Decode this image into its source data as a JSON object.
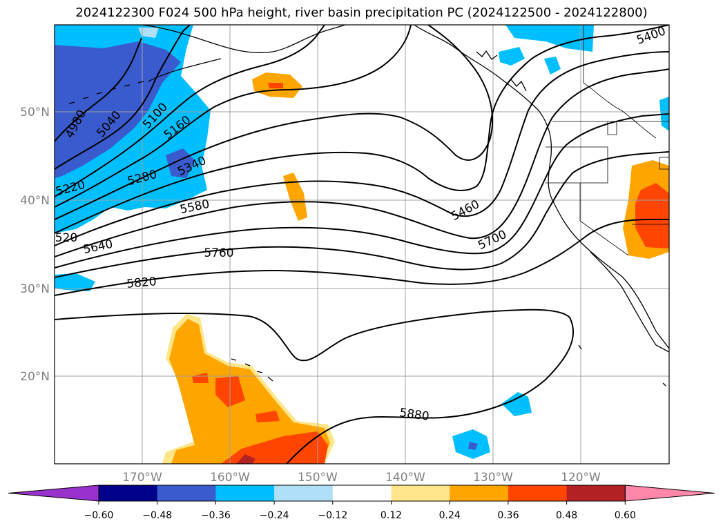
{
  "title": "2024122300 F024 500 hPa height, river basin precipitation PC (2024122500 - 2024122800)",
  "lat_labels": [
    "50°N",
    "40°N",
    "30°N",
    "20°N"
  ],
  "lon_labels": [
    "170°W",
    "160°W",
    "150°W",
    "140°W",
    "130°W",
    "120°W"
  ],
  "contour_labels": [
    "4980",
    "5040",
    "5100",
    "5160",
    "5220",
    "5280",
    "5340",
    "5400",
    "5460",
    "520",
    "5580",
    "5640",
    "5700",
    "5760",
    "5820",
    "5880"
  ],
  "colorbar": {
    "ticks": [
      "−0.60",
      "−0.48",
      "−0.36",
      "−0.24",
      "−0.12",
      "0.12",
      "0.24",
      "0.36",
      "0.48",
      "0.60"
    ],
    "colors": [
      "#9932cc",
      "#00008b",
      "#3a5bcd",
      "#00bfff",
      "#b0e0f8",
      "#ffffff",
      "#ffe68a",
      "#ffa500",
      "#ff4500",
      "#b22222",
      "#ff88aa"
    ]
  }
}
